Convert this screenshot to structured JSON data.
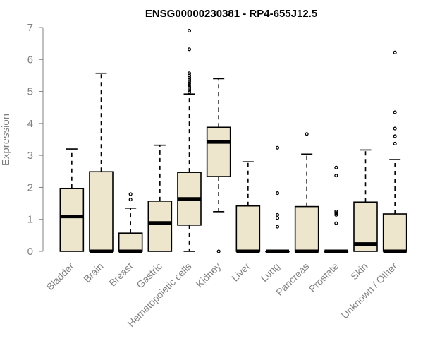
{
  "chart_data": {
    "type": "boxplot",
    "title": "ENSG00000230381 - RP4-655J12.5",
    "xlabel": "",
    "ylabel": "Expression",
    "ylim": [
      0,
      7
    ],
    "yticks": [
      0,
      1,
      2,
      3,
      4,
      5,
      6,
      7
    ],
    "grid": false,
    "categories": [
      "Bladder",
      "Brain",
      "Breast",
      "Gastric",
      "Hematopoietic cells",
      "Kidney",
      "Liver",
      "Lung",
      "Pancreas",
      "Prostate",
      "Skin",
      "Unknown / Other"
    ],
    "boxes": [
      {
        "whisker_low": 0,
        "q1": 0,
        "median": 1.09,
        "q3": 1.97,
        "whisker_high": 3.2,
        "outliers": []
      },
      {
        "whisker_low": 0,
        "q1": 0,
        "median": 0,
        "q3": 2.49,
        "whisker_high": 5.57,
        "outliers": []
      },
      {
        "whisker_low": 0,
        "q1": 0,
        "median": 0,
        "q3": 0.57,
        "whisker_high": 1.35,
        "outliers": [
          1.62,
          1.79
        ]
      },
      {
        "whisker_low": 0,
        "q1": 0,
        "median": 0.89,
        "q3": 1.57,
        "whisker_high": 3.32,
        "outliers": []
      },
      {
        "whisker_low": 0,
        "q1": 0.82,
        "median": 1.64,
        "q3": 2.47,
        "whisker_high": 4.92,
        "outliers": [
          4.97,
          5.02,
          5.08,
          5.14,
          5.2,
          5.26,
          5.32,
          5.38,
          5.44,
          5.5,
          5.57,
          6.32,
          6.9
        ]
      },
      {
        "whisker_low": 1.24,
        "q1": 2.34,
        "median": 3.42,
        "q3": 3.88,
        "whisker_high": 5.4,
        "outliers": [
          0
        ]
      },
      {
        "whisker_low": 0,
        "q1": 0,
        "median": 0,
        "q3": 1.42,
        "whisker_high": 2.8,
        "outliers": []
      },
      {
        "whisker_low": 0,
        "q1": 0,
        "median": 0,
        "q3": 0,
        "whisker_high": 0,
        "outliers": [
          0.77,
          1.04,
          1.14,
          1.82,
          3.24
        ]
      },
      {
        "whisker_low": 0,
        "q1": 0,
        "median": 0,
        "q3": 1.4,
        "whisker_high": 3.04,
        "outliers": [
          3.67
        ]
      },
      {
        "whisker_low": 0,
        "q1": 0,
        "median": 0,
        "q3": 0,
        "whisker_high": 0,
        "outliers": [
          0.88,
          1.14,
          1.2,
          1.25,
          2.37,
          2.62
        ]
      },
      {
        "whisker_low": 0,
        "q1": 0,
        "median": 0.23,
        "q3": 1.54,
        "whisker_high": 3.17,
        "outliers": []
      },
      {
        "whisker_low": 0,
        "q1": 0,
        "median": 0,
        "q3": 1.17,
        "whisker_high": 2.87,
        "outliers": [
          3.37,
          3.6,
          3.84,
          4.35,
          6.22
        ]
      }
    ]
  }
}
